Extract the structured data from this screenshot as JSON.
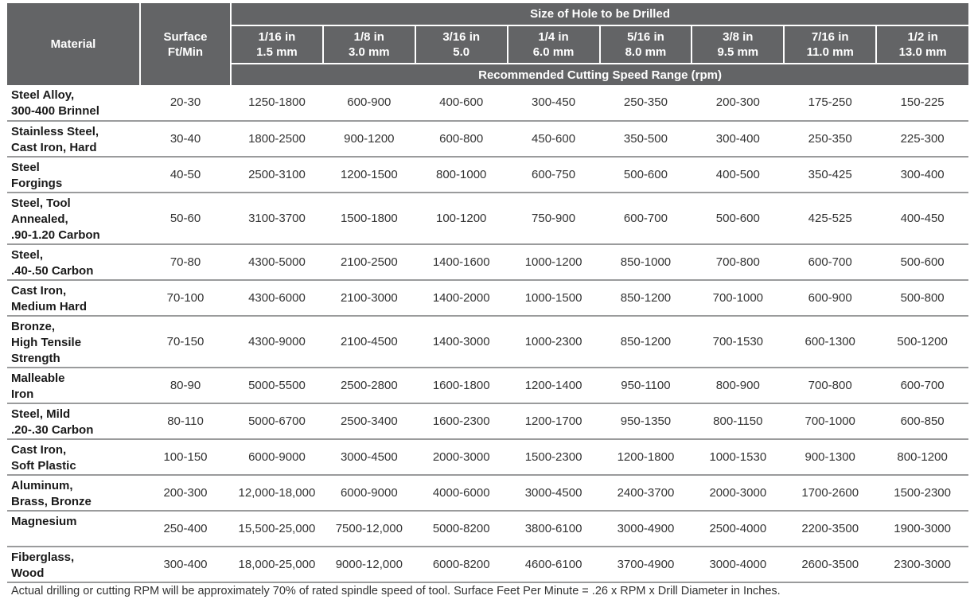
{
  "header": {
    "material": "Material",
    "surface_line1": "Surface",
    "surface_line2": "Ft/Min",
    "size_title": "Size of Hole to be Drilled",
    "speed_title": "Recommended Cutting Speed Range (rpm)",
    "sizes": [
      {
        "line1": "1/16 in",
        "line2": "1.5 mm"
      },
      {
        "line1": "1/8 in",
        "line2": "3.0 mm"
      },
      {
        "line1": "3/16 in",
        "line2": "5.0"
      },
      {
        "line1": "1/4 in",
        "line2": "6.0 mm"
      },
      {
        "line1": "5/16 in",
        "line2": "8.0 mm"
      },
      {
        "line1": "3/8 in",
        "line2": "9.5 mm"
      },
      {
        "line1": "7/16 in",
        "line2": "11.0 mm"
      },
      {
        "line1": "1/2 in",
        "line2": "13.0 mm"
      }
    ]
  },
  "rows": [
    {
      "material": [
        "Steel Alloy,",
        "300-400 Brinnel"
      ],
      "surface": "20-30",
      "speeds": [
        "1250-1800",
        "600-900",
        "400-600",
        "300-450",
        "250-350",
        "200-300",
        "175-250",
        "150-225"
      ]
    },
    {
      "material": [
        "Stainless Steel,",
        "Cast Iron, Hard"
      ],
      "surface": "30-40",
      "speeds": [
        "1800-2500",
        "900-1200",
        "600-800",
        "450-600",
        "350-500",
        "300-400",
        "250-350",
        "225-300"
      ]
    },
    {
      "material": [
        "Steel",
        "Forgings"
      ],
      "surface": "40-50",
      "speeds": [
        "2500-3100",
        "1200-1500",
        "800-1000",
        "600-750",
        "500-600",
        "400-500",
        "350-425",
        "300-400"
      ]
    },
    {
      "material": [
        "Steel, Tool",
        "Annealed,",
        ".90-1.20 Carbon"
      ],
      "surface": "50-60",
      "speeds": [
        "3100-3700",
        "1500-1800",
        "100-1200",
        "750-900",
        "600-700",
        "500-600",
        "425-525",
        "400-450"
      ]
    },
    {
      "material": [
        "Steel,",
        ".40-.50 Carbon"
      ],
      "surface": "70-80",
      "speeds": [
        "4300-5000",
        "2100-2500",
        "1400-1600",
        "1000-1200",
        "850-1000",
        "700-800",
        "600-700",
        "500-600"
      ]
    },
    {
      "material": [
        "Cast Iron,",
        "Medium Hard"
      ],
      "surface": "70-100",
      "speeds": [
        "4300-6000",
        "2100-3000",
        "1400-2000",
        "1000-1500",
        "850-1200",
        "700-1000",
        "600-900",
        "500-800"
      ]
    },
    {
      "material": [
        "Bronze,",
        "High Tensile",
        "Strength"
      ],
      "surface": "70-150",
      "speeds": [
        "4300-9000",
        "2100-4500",
        "1400-3000",
        "1000-2300",
        "850-1200",
        "700-1530",
        "600-1300",
        "500-1200"
      ]
    },
    {
      "material": [
        "Malleable",
        "Iron"
      ],
      "surface": "80-90",
      "speeds": [
        "5000-5500",
        "2500-2800",
        "1600-1800",
        "1200-1400",
        "950-1100",
        "800-900",
        "700-800",
        "600-700"
      ]
    },
    {
      "material": [
        "Steel, Mild",
        ".20-.30 Carbon"
      ],
      "surface": "80-110",
      "speeds": [
        "5000-6700",
        "2500-3400",
        "1600-2300",
        "1200-1700",
        "950-1350",
        "800-1150",
        "700-1000",
        "600-850"
      ]
    },
    {
      "material": [
        "Cast Iron,",
        "Soft Plastic"
      ],
      "surface": "100-150",
      "speeds": [
        "6000-9000",
        "3000-4500",
        "2000-3000",
        "1500-2300",
        "1200-1800",
        "1000-1530",
        "900-1300",
        "800-1200"
      ]
    },
    {
      "material": [
        "Aluminum,",
        "Brass, Bronze"
      ],
      "surface": "200-300",
      "speeds": [
        "12,000-18,000",
        "6000-9000",
        "4000-6000",
        "3000-4500",
        "2400-3700",
        "2000-3000",
        "1700-2600",
        "1500-2300"
      ]
    },
    {
      "material": [
        "Magnesium"
      ],
      "surface": "250-400",
      "speeds": [
        "15,500-25,000",
        "7500-12,000",
        "5000-8200",
        "3800-6100",
        "3000-4900",
        "2500-4000",
        "2200-3500",
        "1900-3000"
      ]
    },
    {
      "material": [
        "Fiberglass,",
        "Wood"
      ],
      "surface": "300-400",
      "speeds": [
        "18,000-25,000",
        "9000-12,000",
        "6000-8200",
        "4600-6100",
        "3700-4900",
        "3000-4000",
        "2600-3500",
        "2300-3000"
      ]
    }
  ],
  "footnote": "Actual drilling or cutting RPM will be approximately 70% of rated spindle speed of tool. Surface Feet Per Minute = .26 x RPM x Drill Diameter in Inches."
}
